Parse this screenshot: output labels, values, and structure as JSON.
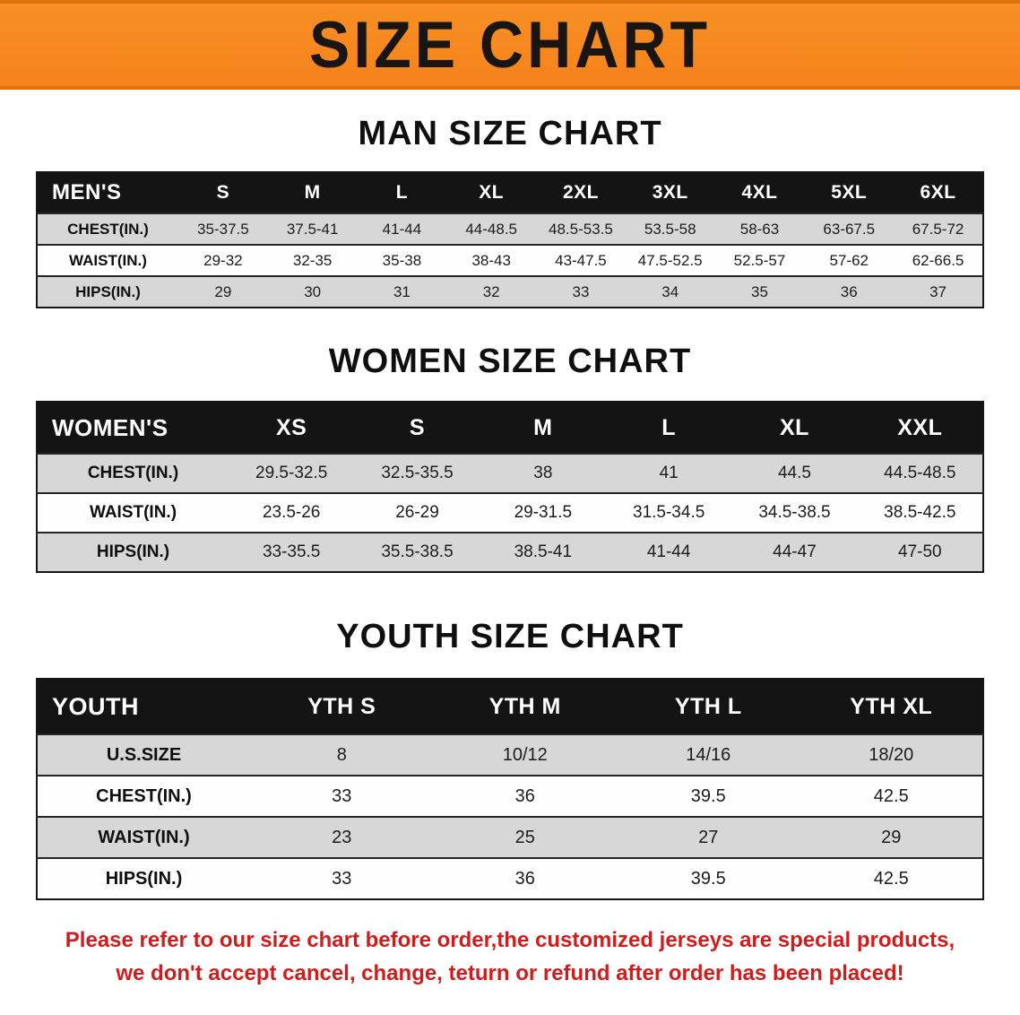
{
  "banner": {
    "title": "SIZE CHART"
  },
  "colors": {
    "banner_orange": "#f5821a",
    "table_header_black": "#141414",
    "row_stripe_gray": "#d7d7d7",
    "notice_red": "#cf1d1d"
  },
  "sections": {
    "men": {
      "heading": "MAN SIZE CHART",
      "table": {
        "header": [
          "MEN'S",
          "S",
          "M",
          "L",
          "XL",
          "2XL",
          "3XL",
          "4XL",
          "5XL",
          "6XL"
        ],
        "rows": [
          [
            "CHEST(IN.)",
            "35-37.5",
            "37.5-41",
            "41-44",
            "44-48.5",
            "48.5-53.5",
            "53.5-58",
            "58-63",
            "63-67.5",
            "67.5-72"
          ],
          [
            "WAIST(IN.)",
            "29-32",
            "32-35",
            "35-38",
            "38-43",
            "43-47.5",
            "47.5-52.5",
            "52.5-57",
            "57-62",
            "62-66.5"
          ],
          [
            "HIPS(IN.)",
            "29",
            "30",
            "31",
            "32",
            "33",
            "34",
            "35",
            "36",
            "37"
          ]
        ]
      }
    },
    "women": {
      "heading": "WOMEN SIZE CHART",
      "table": {
        "header": [
          "WOMEN'S",
          "XS",
          "S",
          "M",
          "L",
          "XL",
          "XXL"
        ],
        "rows": [
          [
            "CHEST(IN.)",
            "29.5-32.5",
            "32.5-35.5",
            "38",
            "41",
            "44.5",
            "44.5-48.5"
          ],
          [
            "WAIST(IN.)",
            "23.5-26",
            "26-29",
            "29-31.5",
            "31.5-34.5",
            "34.5-38.5",
            "38.5-42.5"
          ],
          [
            "HIPS(IN.)",
            "33-35.5",
            "35.5-38.5",
            "38.5-41",
            "41-44",
            "44-47",
            "47-50"
          ]
        ]
      }
    },
    "youth": {
      "heading": "YOUTH SIZE CHART",
      "table": {
        "header": [
          "YOUTH",
          "YTH S",
          "YTH M",
          "YTH L",
          "YTH XL"
        ],
        "rows": [
          [
            "U.S.SIZE",
            "8",
            "10/12",
            "14/16",
            "18/20"
          ],
          [
            "CHEST(IN.)",
            "33",
            "36",
            "39.5",
            "42.5"
          ],
          [
            "WAIST(IN.)",
            "23",
            "25",
            "27",
            "29"
          ],
          [
            "HIPS(IN.)",
            "33",
            "36",
            "39.5",
            "42.5"
          ]
        ]
      }
    }
  },
  "notice": {
    "line1": "Please refer to our size chart before order,the customized jerseys are special products,",
    "line2": "we don't accept cancel, change, teturn or refund after order has been placed!"
  }
}
